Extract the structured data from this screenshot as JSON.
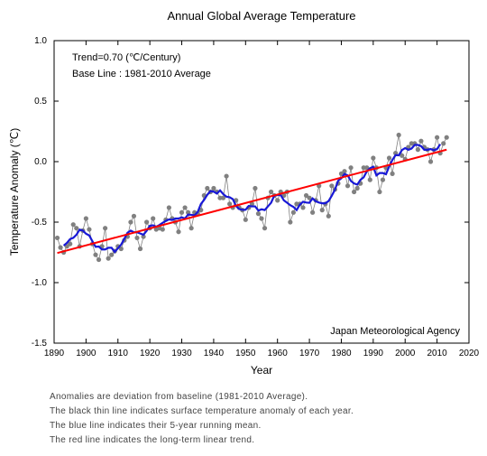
{
  "chart": {
    "type": "line+scatter",
    "title": "Annual Global Average Temperature",
    "title_fontsize": 13,
    "annotation_line1": "Trend=0.70 (℃/Century)",
    "annotation_line2": "Base Line : 1981-2010 Average",
    "annotation_fontsize": 11,
    "credit": "Japan Meteorological Agency",
    "credit_fontsize": 11,
    "xlabel": "Year",
    "ylabel": "Temperature Anomaly (℃)",
    "label_fontsize": 12,
    "tick_fontsize": 10,
    "xlim": [
      1890,
      2020
    ],
    "ylim": [
      -1.5,
      1.0
    ],
    "xtick_step": 10,
    "ytick_step": 0.5,
    "background_color": "#ffffff",
    "axis_color": "#000000",
    "marker_radius": 2.6,
    "marker_color": "#808080",
    "marker_line_width": 0.8,
    "running_mean_color": "#1818d6",
    "running_mean_width": 2.2,
    "trend_color": "#ff0000",
    "trend_width": 2.0,
    "scatter_years": [
      1891,
      1892,
      1893,
      1894,
      1895,
      1896,
      1897,
      1898,
      1899,
      1900,
      1901,
      1902,
      1903,
      1904,
      1905,
      1906,
      1907,
      1908,
      1909,
      1910,
      1911,
      1912,
      1913,
      1914,
      1915,
      1916,
      1917,
      1918,
      1919,
      1920,
      1921,
      1922,
      1923,
      1924,
      1925,
      1926,
      1927,
      1928,
      1929,
      1930,
      1931,
      1932,
      1933,
      1934,
      1935,
      1936,
      1937,
      1938,
      1939,
      1940,
      1941,
      1942,
      1943,
      1944,
      1945,
      1946,
      1947,
      1948,
      1949,
      1950,
      1951,
      1952,
      1953,
      1954,
      1955,
      1956,
      1957,
      1958,
      1959,
      1960,
      1961,
      1962,
      1963,
      1964,
      1965,
      1966,
      1967,
      1968,
      1969,
      1970,
      1971,
      1972,
      1973,
      1974,
      1975,
      1976,
      1977,
      1978,
      1979,
      1980,
      1981,
      1982,
      1983,
      1984,
      1985,
      1986,
      1987,
      1988,
      1989,
      1990,
      1991,
      1992,
      1993,
      1994,
      1995,
      1996,
      1997,
      1998,
      1999,
      2000,
      2001,
      2002,
      2003,
      2004,
      2005,
      2006,
      2007,
      2008,
      2009,
      2010,
      2011,
      2012,
      2013
    ],
    "scatter_values": [
      -0.63,
      -0.71,
      -0.75,
      -0.7,
      -0.68,
      -0.52,
      -0.55,
      -0.7,
      -0.57,
      -0.47,
      -0.56,
      -0.68,
      -0.77,
      -0.81,
      -0.7,
      -0.55,
      -0.8,
      -0.77,
      -0.74,
      -0.7,
      -0.72,
      -0.65,
      -0.62,
      -0.5,
      -0.45,
      -0.63,
      -0.72,
      -0.62,
      -0.5,
      -0.55,
      -0.47,
      -0.56,
      -0.55,
      -0.56,
      -0.48,
      -0.38,
      -0.47,
      -0.5,
      -0.58,
      -0.42,
      -0.38,
      -0.42,
      -0.55,
      -0.42,
      -0.43,
      -0.4,
      -0.28,
      -0.22,
      -0.25,
      -0.22,
      -0.25,
      -0.3,
      -0.3,
      -0.12,
      -0.35,
      -0.38,
      -0.32,
      -0.38,
      -0.4,
      -0.48,
      -0.38,
      -0.35,
      -0.22,
      -0.43,
      -0.47,
      -0.55,
      -0.3,
      -0.25,
      -0.28,
      -0.32,
      -0.25,
      -0.28,
      -0.25,
      -0.5,
      -0.42,
      -0.35,
      -0.35,
      -0.38,
      -0.28,
      -0.3,
      -0.42,
      -0.32,
      -0.2,
      -0.4,
      -0.35,
      -0.45,
      -0.2,
      -0.23,
      -0.18,
      -0.1,
      -0.08,
      -0.2,
      -0.05,
      -0.25,
      -0.22,
      -0.18,
      -0.05,
      -0.05,
      -0.15,
      0.03,
      -0.05,
      -0.25,
      -0.15,
      -0.05,
      0.03,
      -0.1,
      0.07,
      0.22,
      0.05,
      0.02,
      0.12,
      0.15,
      0.15,
      0.1,
      0.17,
      0.12,
      0.1,
      0.0,
      0.1,
      0.2,
      0.07,
      0.15,
      0.2
    ],
    "running_mean_years": [
      1893,
      1894,
      1895,
      1896,
      1897,
      1898,
      1899,
      1900,
      1901,
      1902,
      1903,
      1904,
      1905,
      1906,
      1907,
      1908,
      1909,
      1910,
      1911,
      1912,
      1913,
      1914,
      1915,
      1916,
      1917,
      1918,
      1919,
      1920,
      1921,
      1922,
      1923,
      1924,
      1925,
      1926,
      1927,
      1928,
      1929,
      1930,
      1931,
      1932,
      1933,
      1934,
      1935,
      1936,
      1937,
      1938,
      1939,
      1940,
      1941,
      1942,
      1943,
      1944,
      1945,
      1946,
      1947,
      1948,
      1949,
      1950,
      1951,
      1952,
      1953,
      1954,
      1955,
      1956,
      1957,
      1958,
      1959,
      1960,
      1961,
      1962,
      1963,
      1964,
      1965,
      1966,
      1967,
      1968,
      1969,
      1970,
      1971,
      1972,
      1973,
      1974,
      1975,
      1976,
      1977,
      1978,
      1979,
      1980,
      1981,
      1982,
      1983,
      1984,
      1985,
      1986,
      1987,
      1988,
      1989,
      1990,
      1991,
      1992,
      1993,
      1994,
      1995,
      1996,
      1997,
      1998,
      1999,
      2000,
      2001,
      2002,
      2003,
      2004,
      2005,
      2006,
      2007,
      2008,
      2009,
      2010,
      2011
    ],
    "running_mean_values": [
      -0.694,
      -0.672,
      -0.64,
      -0.63,
      -0.604,
      -0.562,
      -0.57,
      -0.596,
      -0.61,
      -0.658,
      -0.704,
      -0.702,
      -0.726,
      -0.726,
      -0.712,
      -0.712,
      -0.746,
      -0.716,
      -0.686,
      -0.638,
      -0.588,
      -0.57,
      -0.584,
      -0.584,
      -0.594,
      -0.604,
      -0.572,
      -0.53,
      -0.526,
      -0.538,
      -0.524,
      -0.506,
      -0.49,
      -0.478,
      -0.482,
      -0.47,
      -0.47,
      -0.46,
      -0.47,
      -0.438,
      -0.44,
      -0.444,
      -0.416,
      -0.35,
      -0.316,
      -0.274,
      -0.244,
      -0.248,
      -0.264,
      -0.238,
      -0.268,
      -0.29,
      -0.294,
      -0.31,
      -0.366,
      -0.392,
      -0.398,
      -0.398,
      -0.366,
      -0.37,
      -0.37,
      -0.404,
      -0.394,
      -0.4,
      -0.37,
      -0.34,
      -0.28,
      -0.276,
      -0.276,
      -0.32,
      -0.34,
      -0.36,
      -0.374,
      -0.4,
      -0.356,
      -0.332,
      -0.338,
      -0.34,
      -0.304,
      -0.328,
      -0.338,
      -0.344,
      -0.344,
      -0.326,
      -0.282,
      -0.232,
      -0.158,
      -0.138,
      -0.102,
      -0.114,
      -0.16,
      -0.18,
      -0.19,
      -0.15,
      -0.13,
      -0.08,
      -0.054,
      -0.042,
      -0.114,
      -0.094,
      -0.094,
      -0.104,
      -0.04,
      0.014,
      0.054,
      0.052,
      0.096,
      0.112,
      0.098,
      0.108,
      0.138,
      0.138,
      0.128,
      0.098,
      0.098,
      0.104,
      0.094,
      0.104,
      0.144
    ],
    "trend_start_year": 1891,
    "trend_start_value": -0.755,
    "trend_end_year": 2013,
    "trend_end_value": 0.099
  },
  "captions": {
    "line1": "Anomalies are deviation from baseline (1981-2010 Average).",
    "line2": "The black thin line indicates surface temperature anomaly of each year.",
    "line3": "The blue line indicates their 5-year running mean.",
    "line4": "The red line indicates the long-term linear trend."
  }
}
